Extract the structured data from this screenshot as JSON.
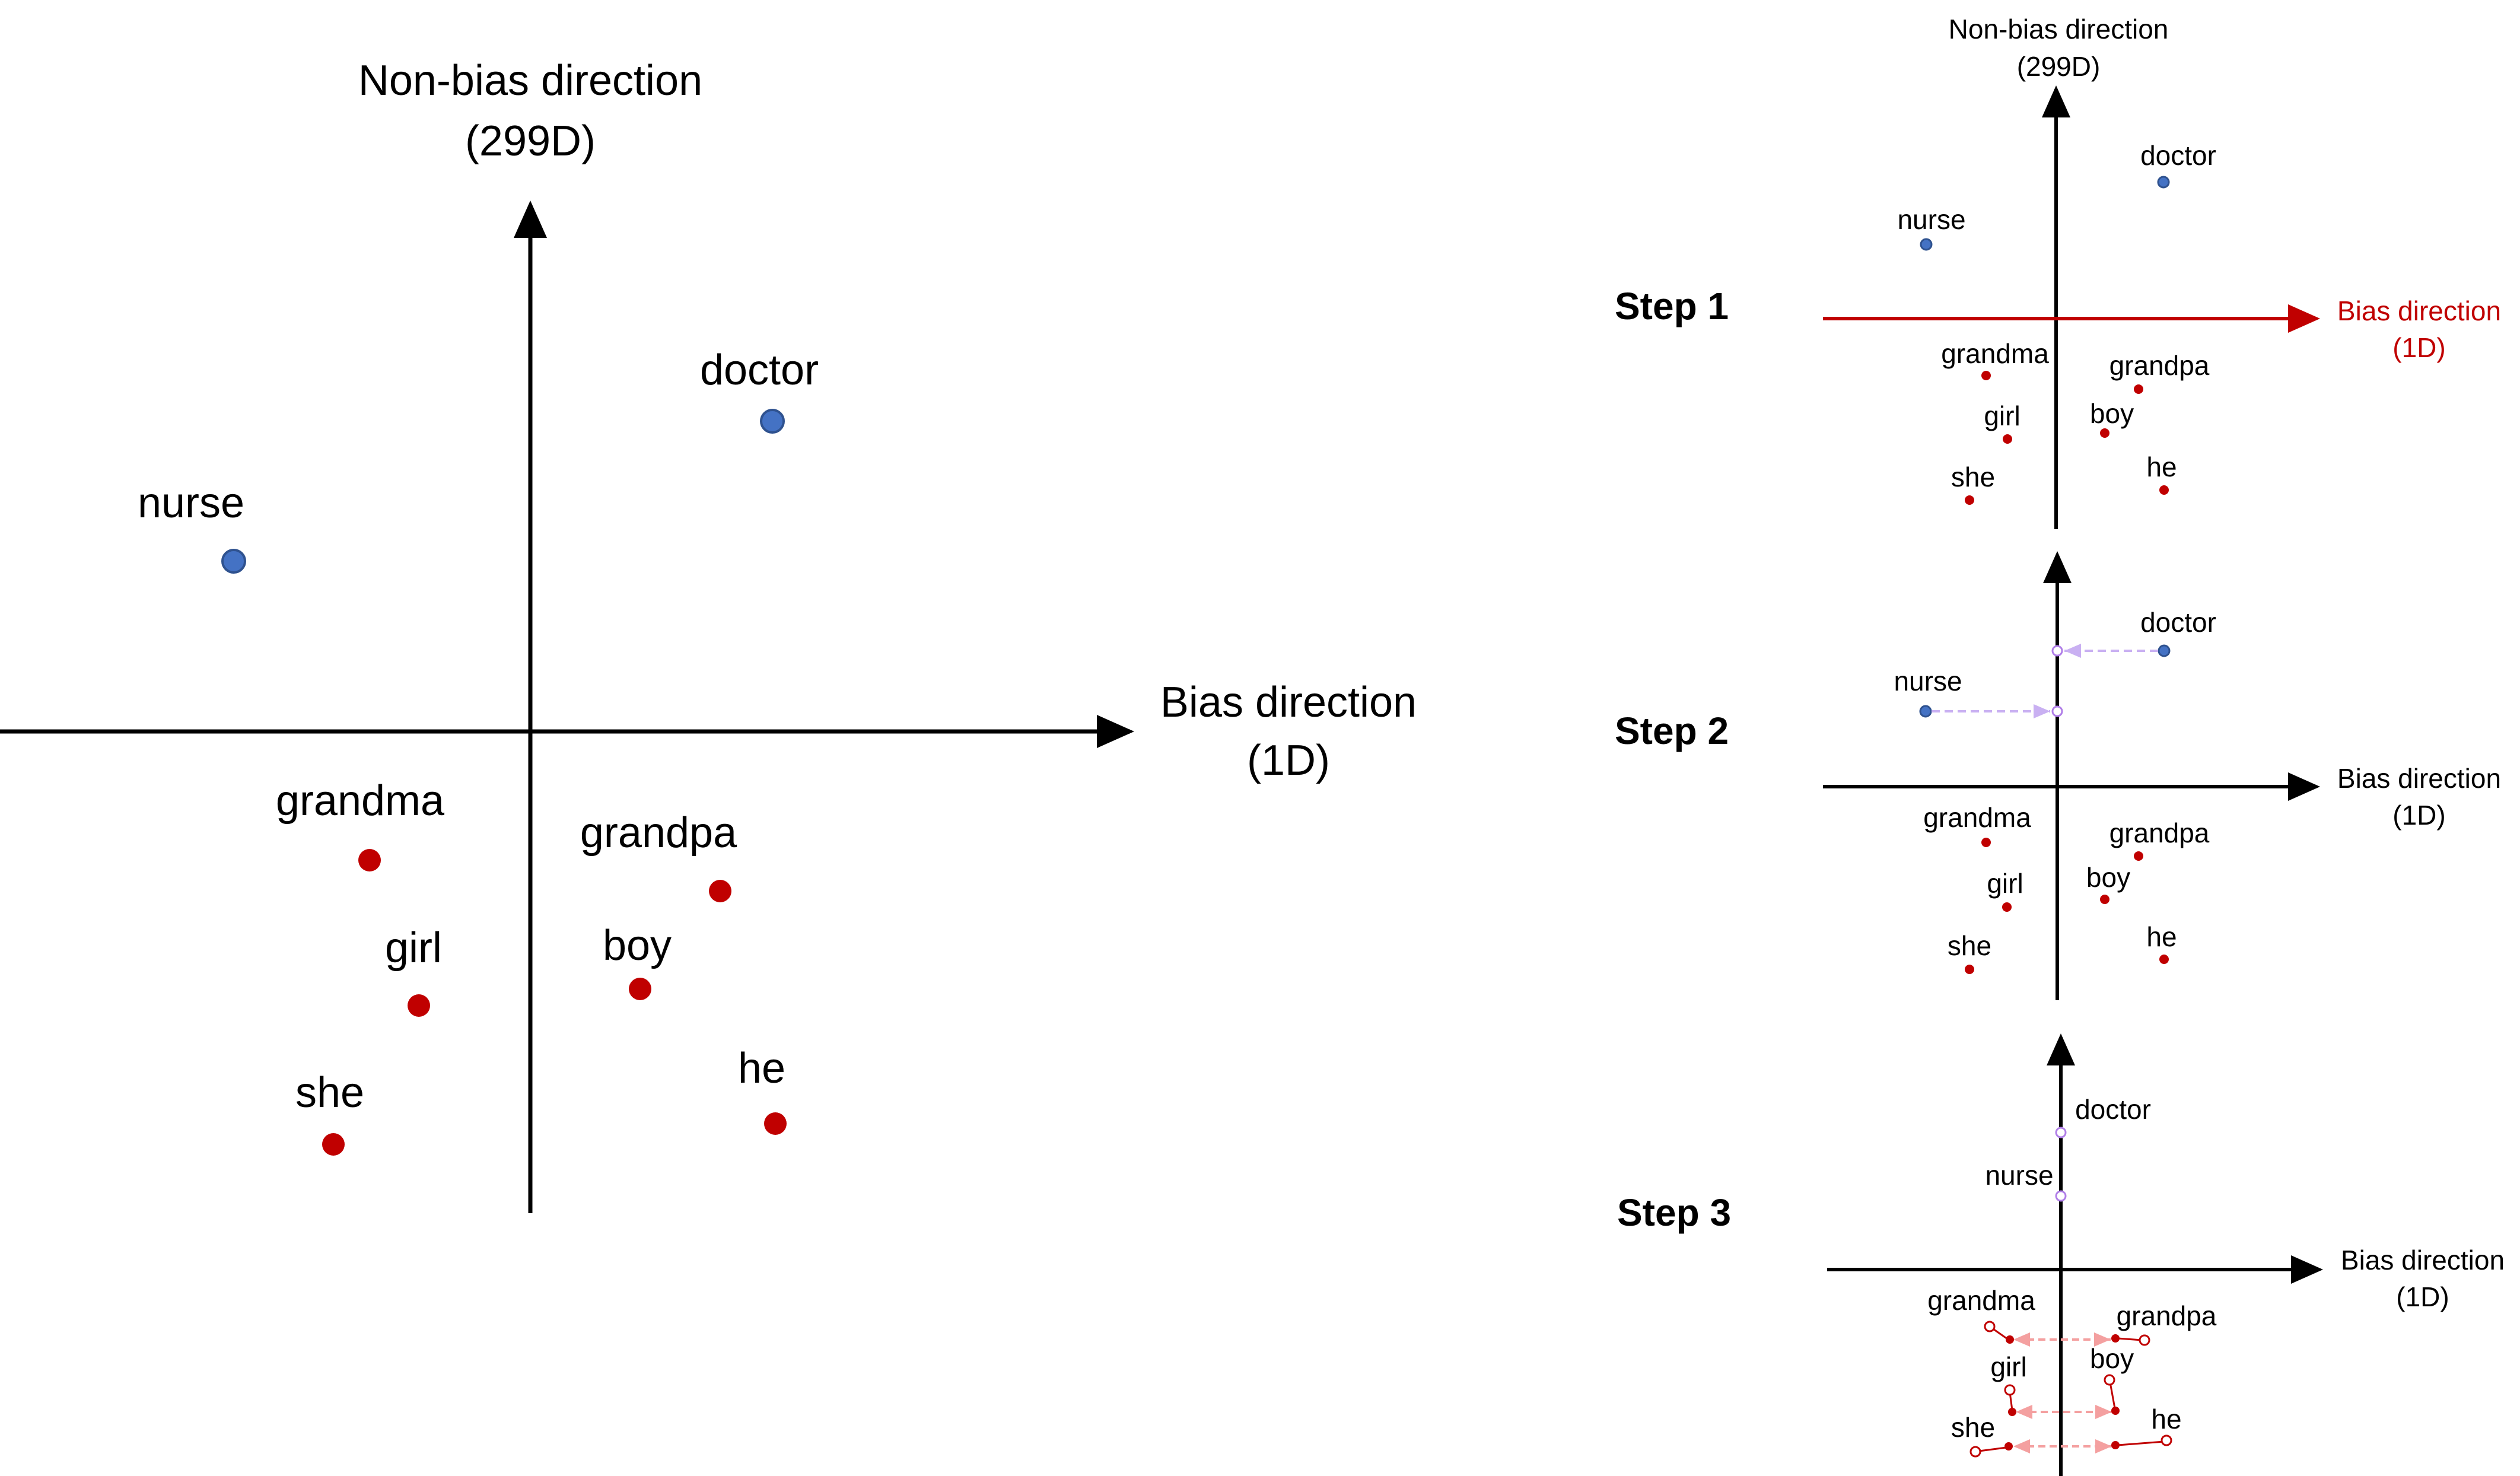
{
  "colors": {
    "female": "#c00000",
    "male": "#c00000",
    "neutral": "#4472c4",
    "projected": "#b07ee8",
    "projection_arrow": "#c9b0f2",
    "equalize_arrow": "#f4a0a0",
    "bias_axis_step1": "#c00000",
    "axis": "#000000"
  },
  "main": {
    "y_axis_label_line1": "Non-bias direction",
    "y_axis_label_line2": "(299D)",
    "x_axis_label_line1": "Bias direction",
    "x_axis_label_line2": "(1D)",
    "words": {
      "doctor": "doctor",
      "nurse": "nurse",
      "grandma": "grandma",
      "grandpa": "grandpa",
      "girl": "girl",
      "boy": "boy",
      "she": "she",
      "he": "he"
    }
  },
  "step1": {
    "title": "Step 1",
    "y_axis_label_line1": "Non-bias direction",
    "y_axis_label_line2": "(299D)",
    "x_axis_label_line1": "Bias direction",
    "x_axis_label_line2": "(1D)",
    "words": {
      "doctor": "doctor",
      "nurse": "nurse",
      "grandma": "grandma",
      "grandpa": "grandpa",
      "girl": "girl",
      "boy": "boy",
      "she": "she",
      "he": "he"
    }
  },
  "step2": {
    "title": "Step 2",
    "x_axis_label_line1": "Bias direction",
    "x_axis_label_line2": "(1D)",
    "words": {
      "doctor": "doctor",
      "nurse": "nurse",
      "grandma": "grandma",
      "grandpa": "grandpa",
      "girl": "girl",
      "boy": "boy",
      "she": "she",
      "he": "he"
    }
  },
  "step3": {
    "title": "Step 3",
    "x_axis_label_line1": "Bias direction",
    "x_axis_label_line2": "(1D)",
    "words": {
      "doctor": "doctor",
      "nurse": "nurse",
      "grandma": "grandma",
      "grandpa": "grandpa",
      "girl": "girl",
      "boy": "boy",
      "she": "she",
      "he": "he"
    }
  }
}
